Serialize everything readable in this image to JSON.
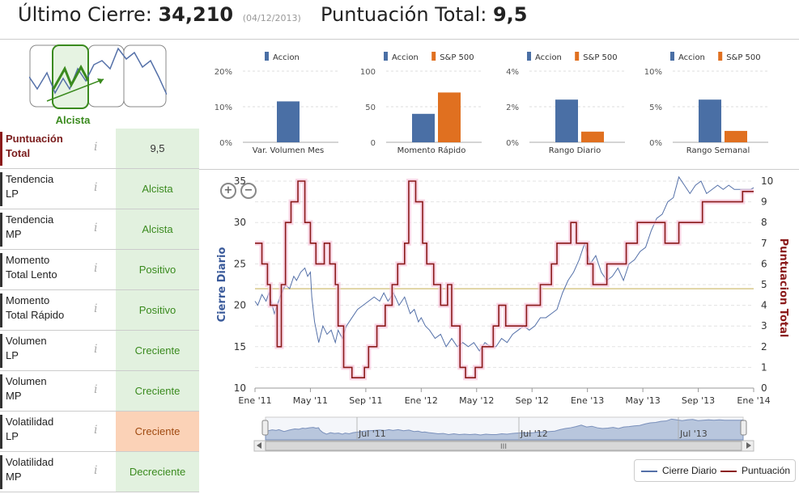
{
  "header": {
    "close_label": "Último Cierre:",
    "close_value": "34,210",
    "close_date": "(04/12/2013)",
    "score_label": "Puntuación Total:",
    "score_value": "9,5"
  },
  "trend_thumb": {
    "label": "Alcista"
  },
  "indicators": [
    {
      "label_l1": "Puntuación",
      "label_l2": "Total",
      "value": "9,5",
      "state": "total"
    },
    {
      "label_l1": "Tendencia",
      "label_l2": "LP",
      "value": "Alcista",
      "state": "good"
    },
    {
      "label_l1": "Tendencia",
      "label_l2": "MP",
      "value": "Alcista",
      "state": "good"
    },
    {
      "label_l1": "Momento",
      "label_l2": "Total Lento",
      "value": "Positivo",
      "state": "good"
    },
    {
      "label_l1": "Momento",
      "label_l2": "Total Rápido",
      "value": "Positivo",
      "state": "good"
    },
    {
      "label_l1": "Volumen",
      "label_l2": "LP",
      "value": "Creciente",
      "state": "good"
    },
    {
      "label_l1": "Volumen",
      "label_l2": "MP",
      "value": "Creciente",
      "state": "good"
    },
    {
      "label_l1": "Volatilidad",
      "label_l2": "LP",
      "value": "Creciente",
      "state": "warn"
    },
    {
      "label_l1": "Volatilidad",
      "label_l2": "MP",
      "value": "Decreciente",
      "state": "good"
    }
  ],
  "info_glyph": "i",
  "colors": {
    "accion": "#4a6fa5",
    "sp500": "#e07020",
    "price_line": "#5470a8",
    "score_line": "#8b1a1a",
    "threshold": "#d8c88a"
  },
  "chart_data": [
    {
      "type": "bar",
      "title": "Var. Volumen Mes",
      "legend": [
        "Accion"
      ],
      "ytick_labels": [
        "20%",
        "10%",
        "0%"
      ],
      "ylim": [
        0,
        20
      ],
      "values": [
        11.5
      ]
    },
    {
      "type": "bar",
      "title": "Momento Rápido",
      "legend": [
        "Accion",
        "S&P 500"
      ],
      "ytick_labels": [
        "100",
        "50",
        "0"
      ],
      "ylim": [
        0,
        100
      ],
      "values": [
        40,
        70
      ]
    },
    {
      "type": "bar",
      "title": "Rango Diario",
      "legend": [
        "Accion",
        "S&P 500"
      ],
      "ytick_labels": [
        "4%",
        "2%",
        "0%"
      ],
      "ylim": [
        0,
        4
      ],
      "values": [
        2.4,
        0.6
      ]
    },
    {
      "type": "bar",
      "title": "Rango Semanal",
      "legend": [
        "Accion",
        "S&P 500"
      ],
      "ytick_labels": [
        "10%",
        "5%",
        "0%"
      ],
      "ylim": [
        0,
        10
      ],
      "values": [
        6,
        1.6
      ]
    },
    {
      "type": "line",
      "xlabels": [
        "Ene '11",
        "May '11",
        "Sep '11",
        "Ene '12",
        "May '12",
        "Sep '12",
        "Ene '13",
        "May '13",
        "Sep '13",
        "Ene '14"
      ],
      "ylabel_left": "Cierre Diario",
      "ylabel_right": "Puntuacion Total",
      "left_ticks": [
        "35",
        "30",
        "25",
        "20",
        "15",
        "10"
      ],
      "right_ticks": [
        "10",
        "9",
        "8",
        "7",
        "6",
        "5",
        "4",
        "3",
        "2",
        "1",
        "0"
      ],
      "ylim_left": [
        10,
        35
      ],
      "ylim_right": [
        0,
        10
      ],
      "threshold_right": 4.8,
      "series": [
        {
          "name": "Cierre Diario",
          "x": [
            0,
            0.2,
            0.5,
            0.8,
            1.0,
            1.4,
            1.8,
            2.2,
            2.5,
            2.8,
            3.0,
            3.3,
            3.6,
            3.8,
            4.0,
            4.1,
            4.3,
            4.6,
            4.9,
            5.2,
            5.5,
            5.8,
            6.0,
            6.3,
            6.6,
            7.0,
            7.4,
            7.8,
            8.2,
            8.6,
            9.0,
            9.3,
            9.6,
            10.0,
            10.4,
            10.8,
            11.2,
            11.5,
            11.8,
            12.0,
            12.3,
            12.6,
            13.0,
            13.4,
            13.8,
            14.2,
            14.6,
            15.0,
            15.4,
            15.8,
            16.2,
            16.6,
            17.0,
            17.4,
            17.8,
            18.2,
            18.6,
            19.0,
            19.4,
            19.8,
            20.2,
            20.6,
            21.0,
            21.4,
            21.8,
            22.2,
            22.6,
            23.0,
            23.4,
            23.8,
            24.2,
            24.6,
            25.0,
            25.4,
            25.8,
            26.2,
            26.6,
            27.0,
            27.4,
            27.8,
            28.2,
            28.6,
            29.0,
            29.4,
            29.8,
            30.2,
            30.6,
            31.0,
            31.4,
            31.8,
            32.2,
            32.6,
            33.0,
            33.4,
            33.8,
            34.2,
            34.6,
            35.0,
            35.4,
            35.8,
            36.0
          ],
          "values": [
            20.5,
            20.0,
            21.3,
            20.5,
            21.5,
            19.0,
            21.0,
            22.5,
            22.0,
            23.5,
            23.0,
            24.0,
            24.5,
            23.5,
            24.0,
            21.0,
            18.0,
            15.5,
            17.5,
            16.5,
            17.0,
            15.5,
            17.0,
            16.0,
            17.5,
            18.5,
            19.5,
            20.0,
            20.5,
            21.0,
            20.5,
            21.5,
            20.5,
            21.5,
            20.0,
            21.0,
            19.0,
            19.5,
            18.0,
            18.5,
            17.5,
            17.0,
            16.0,
            16.5,
            15.0,
            16.0,
            15.0,
            15.5,
            15.0,
            15.5,
            14.5,
            15.5,
            15.0,
            15.0,
            16.0,
            15.5,
            16.5,
            17.0,
            17.5,
            17.0,
            17.5,
            18.5,
            18.5,
            19.0,
            19.5,
            21.5,
            23.0,
            24.0,
            25.5,
            27.5,
            25.0,
            26.0,
            24.0,
            23.0,
            23.5,
            24.5,
            23.0,
            25.0,
            25.5,
            26.5,
            27.0,
            29.0,
            30.5,
            31.0,
            32.5,
            33.0,
            35.5,
            34.5,
            33.5,
            34.5,
            35.0,
            33.5,
            34.0,
            34.5,
            34.0,
            34.5,
            34.0,
            34.0,
            34.0,
            34.0,
            34.2
          ]
        },
        {
          "name": "Puntuación",
          "x": [
            0,
            0.5,
            0.9,
            1.1,
            1.6,
            1.9,
            2.2,
            2.6,
            3.1,
            3.6,
            4.0,
            4.4,
            5.0,
            5.4,
            5.8,
            6.0,
            6.4,
            7.0,
            7.6,
            7.9,
            8.2,
            8.8,
            9.4,
            9.9,
            10.3,
            10.8,
            11.1,
            11.6,
            12.1,
            12.4,
            12.9,
            13.4,
            13.9,
            14.2,
            14.8,
            15.2,
            15.9,
            16.4,
            16.8,
            17.2,
            17.6,
            18.1,
            18.6,
            19.1,
            19.6,
            20.1,
            20.6,
            21.0,
            21.4,
            21.8,
            22.3,
            22.8,
            23.2,
            23.6,
            24.0,
            24.4,
            24.9,
            25.4,
            25.8,
            26.3,
            26.8,
            27.1,
            27.6,
            28.0,
            28.5,
            29.0,
            29.6,
            30.1,
            30.6,
            31.0,
            31.4,
            31.8,
            32.3,
            32.8,
            33.2,
            33.8,
            34.3,
            34.8,
            35.2,
            35.6,
            36.0
          ],
          "values": [
            7,
            6,
            5,
            4,
            2,
            5,
            8,
            9,
            10,
            8,
            7,
            6,
            7,
            6,
            5,
            3,
            1,
            0.5,
            0.5,
            1,
            2,
            3,
            4,
            5,
            6,
            7,
            10,
            9,
            7,
            6,
            5,
            4,
            5,
            3,
            1,
            0.5,
            1,
            2,
            2,
            3,
            4,
            3,
            3,
            3,
            4,
            4,
            5,
            5,
            6,
            7,
            7,
            8,
            7,
            7,
            6,
            5,
            5,
            6,
            6,
            6,
            7,
            7,
            8,
            8,
            8,
            8,
            7,
            7,
            8,
            8,
            8,
            8,
            9,
            9,
            9,
            9,
            9,
            9,
            9.5,
            9.5,
            9.5
          ]
        }
      ]
    }
  ],
  "navigator": {
    "labels": [
      "Jul '11",
      "Jul '12",
      "Jul '13"
    ],
    "scroll_glyph": "III"
  },
  "legend": {
    "price": "Cierre Diario",
    "score": "Puntuación"
  },
  "zoom": {
    "in": "+",
    "out": "−"
  }
}
